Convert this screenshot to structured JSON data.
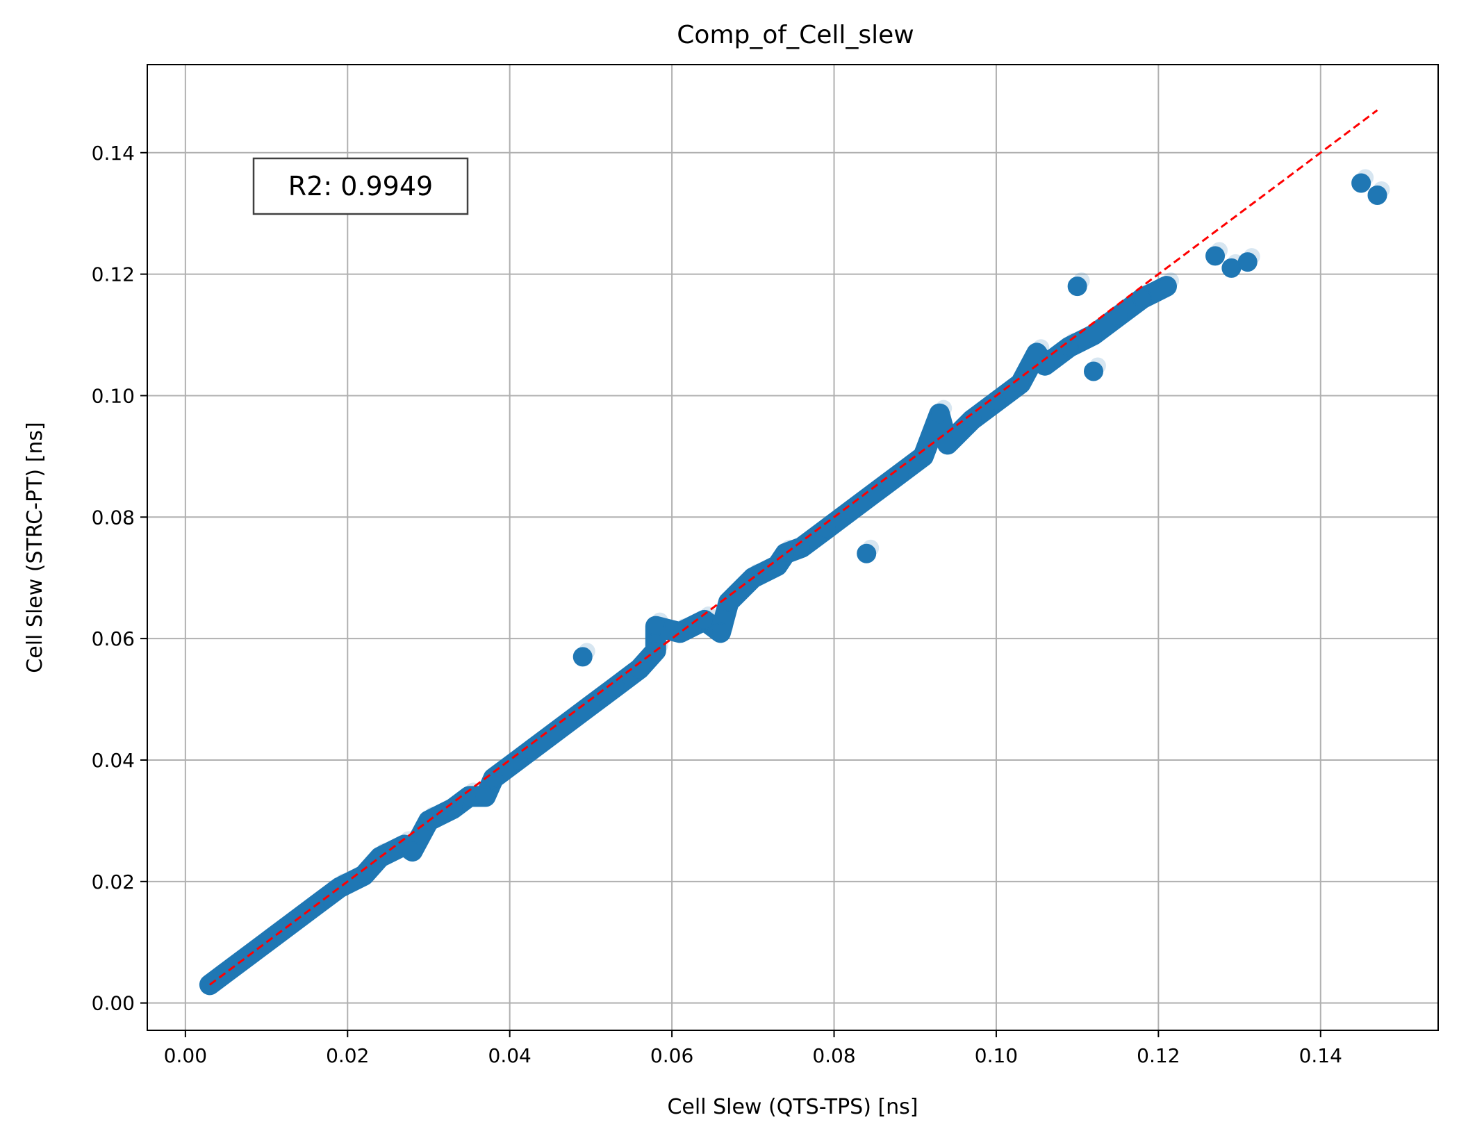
{
  "chart_data": {
    "type": "scatter",
    "title": "Comp_of_Cell_slew",
    "xlabel": "Cell Slew (QTS-TPS) [ns]",
    "ylabel": "Cell Slew (STRC-PT) [ns]",
    "xlim": [
      -0.0047,
      0.1545
    ],
    "ylim": [
      -0.0045,
      0.1545
    ],
    "xticks": [
      "0.00",
      "0.02",
      "0.04",
      "0.06",
      "0.08",
      "0.10",
      "0.12",
      "0.14"
    ],
    "yticks": [
      "0.00",
      "0.02",
      "0.04",
      "0.06",
      "0.08",
      "0.10",
      "0.12",
      "0.14"
    ],
    "grid": true,
    "annotation": "R2: 0.9949",
    "colors": {
      "points": "#1f77b4",
      "reference_line": "#ff0000",
      "grid": "#b0b0b0"
    },
    "series": [
      {
        "marker": "circle",
        "x": [
          0.003,
          0.005,
          0.008,
          0.01,
          0.013,
          0.016,
          0.019,
          0.022,
          0.024,
          0.027,
          0.03,
          0.033,
          0.035,
          0.038,
          0.041,
          0.044,
          0.047,
          0.05,
          0.053,
          0.056,
          0.058,
          0.061,
          0.064,
          0.067,
          0.07,
          0.073,
          0.076,
          0.079,
          0.082,
          0.085,
          0.088,
          0.091,
          0.094,
          0.097,
          0.1,
          0.103,
          0.106,
          0.109,
          0.112,
          0.115,
          0.118,
          0.121,
          0.028,
          0.037,
          0.049,
          0.058,
          0.066,
          0.074,
          0.084,
          0.093,
          0.105,
          0.11,
          0.112,
          0.127,
          0.129,
          0.131,
          0.145,
          0.147
        ],
        "y": [
          0.003,
          0.005,
          0.008,
          0.01,
          0.013,
          0.016,
          0.019,
          0.021,
          0.024,
          0.026,
          0.03,
          0.032,
          0.034,
          0.037,
          0.04,
          0.043,
          0.046,
          0.049,
          0.052,
          0.055,
          0.058,
          0.061,
          0.063,
          0.066,
          0.07,
          0.072,
          0.075,
          0.078,
          0.081,
          0.084,
          0.087,
          0.09,
          0.092,
          0.096,
          0.099,
          0.102,
          0.105,
          0.108,
          0.11,
          0.113,
          0.116,
          0.118,
          0.025,
          0.034,
          0.057,
          0.062,
          0.061,
          0.074,
          0.074,
          0.097,
          0.107,
          0.118,
          0.104,
          0.123,
          0.121,
          0.122,
          0.135,
          0.133
        ]
      }
    ],
    "reference_line": {
      "x": [
        0.003,
        0.147
      ],
      "y": [
        0.003,
        0.147
      ],
      "style": "dashed"
    }
  }
}
